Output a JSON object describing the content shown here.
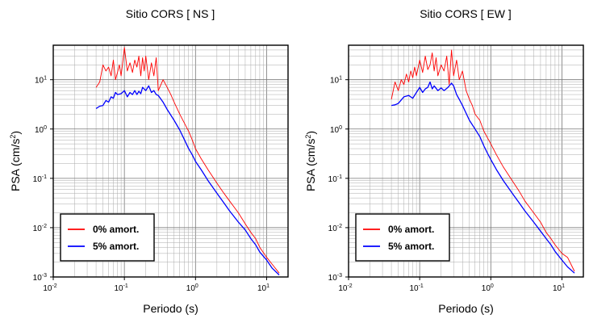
{
  "chart_data": [
    {
      "type": "line",
      "title": "Sitio CORS [ NS ]",
      "xlabel": "Periodo (s)",
      "ylabel_base": "PSA (cm/s",
      "ylabel_sup": "2",
      "ylabel_end": ")",
      "x_scale": "log",
      "y_scale": "log",
      "xlim": [
        0.01,
        20
      ],
      "ylim": [
        0.001,
        50
      ],
      "grid": true,
      "legend_position": "bottom-left",
      "x_ticks": [
        {
          "base": "10",
          "exp": "-2",
          "value": 0.01
        },
        {
          "base": "10",
          "exp": "-1",
          "value": 0.1
        },
        {
          "base": "10",
          "exp": "0",
          "value": 1
        },
        {
          "base": "10",
          "exp": "1",
          "value": 10
        }
      ],
      "y_ticks": [
        {
          "base": "10",
          "exp": "1",
          "value": 10
        },
        {
          "base": "10",
          "exp": "0",
          "value": 1
        },
        {
          "base": "10",
          "exp": "-1",
          "value": 0.1
        },
        {
          "base": "10",
          "exp": "-2",
          "value": 0.01
        },
        {
          "base": "10",
          "exp": "-3",
          "value": 0.001
        }
      ],
      "series": [
        {
          "name": "0% amort.",
          "color": "#ff0000",
          "x": [
            0.04,
            0.045,
            0.05,
            0.055,
            0.06,
            0.065,
            0.07,
            0.075,
            0.08,
            0.085,
            0.09,
            0.1,
            0.11,
            0.12,
            0.13,
            0.14,
            0.15,
            0.16,
            0.17,
            0.18,
            0.19,
            0.2,
            0.22,
            0.24,
            0.26,
            0.28,
            0.3,
            0.35,
            0.4,
            0.45,
            0.5,
            0.6,
            0.7,
            0.8,
            0.9,
            1.0,
            1.2,
            1.5,
            2,
            2.5,
            3,
            4,
            5,
            6,
            7,
            8,
            10,
            12,
            15
          ],
          "y": [
            7,
            9,
            20,
            15,
            18,
            12,
            25,
            10,
            14,
            20,
            12,
            45,
            15,
            22,
            14,
            25,
            18,
            30,
            12,
            28,
            15,
            30,
            10,
            22,
            12,
            28,
            6,
            10,
            7,
            5,
            3.5,
            2,
            1.3,
            0.9,
            0.6,
            0.4,
            0.25,
            0.15,
            0.08,
            0.05,
            0.035,
            0.02,
            0.012,
            0.008,
            0.006,
            0.004,
            0.0025,
            0.0018,
            0.0012
          ]
        },
        {
          "name": "5% amort.",
          "color": "#0000ff",
          "x": [
            0.04,
            0.045,
            0.05,
            0.055,
            0.06,
            0.065,
            0.07,
            0.075,
            0.08,
            0.09,
            0.1,
            0.11,
            0.12,
            0.13,
            0.14,
            0.15,
            0.16,
            0.17,
            0.18,
            0.2,
            0.22,
            0.24,
            0.26,
            0.28,
            0.3,
            0.35,
            0.4,
            0.5,
            0.6,
            0.7,
            0.8,
            0.9,
            1.0,
            1.2,
            1.5,
            2,
            2.5,
            3,
            4,
            5,
            6,
            7,
            8,
            10,
            12,
            15
          ],
          "y": [
            2.6,
            2.9,
            3,
            3.8,
            3.5,
            4.5,
            4.2,
            5.5,
            5,
            5.2,
            6,
            4.5,
            5.5,
            5,
            6,
            5,
            5.8,
            5.2,
            7,
            6,
            7.5,
            5.5,
            6,
            5,
            4.8,
            3.5,
            2.5,
            1.5,
            0.95,
            0.6,
            0.4,
            0.3,
            0.22,
            0.15,
            0.09,
            0.05,
            0.032,
            0.022,
            0.013,
            0.009,
            0.006,
            0.0045,
            0.0032,
            0.0022,
            0.0015,
            0.0011
          ]
        }
      ]
    },
    {
      "type": "line",
      "title": "Sitio CORS [ EW ]",
      "xlabel": "Periodo (s)",
      "ylabel_base": "PSA (cm/s",
      "ylabel_sup": "2",
      "ylabel_end": ")",
      "x_scale": "log",
      "y_scale": "log",
      "xlim": [
        0.01,
        20
      ],
      "ylim": [
        0.001,
        50
      ],
      "grid": true,
      "legend_position": "bottom-left",
      "x_ticks": [
        {
          "base": "10",
          "exp": "-2",
          "value": 0.01
        },
        {
          "base": "10",
          "exp": "-1",
          "value": 0.1
        },
        {
          "base": "10",
          "exp": "0",
          "value": 1
        },
        {
          "base": "10",
          "exp": "1",
          "value": 10
        }
      ],
      "y_ticks": [
        {
          "base": "10",
          "exp": "1",
          "value": 10
        },
        {
          "base": "10",
          "exp": "0",
          "value": 1
        },
        {
          "base": "10",
          "exp": "-1",
          "value": 0.1
        },
        {
          "base": "10",
          "exp": "-2",
          "value": 0.01
        },
        {
          "base": "10",
          "exp": "-3",
          "value": 0.001
        }
      ],
      "series": [
        {
          "name": "0% amort.",
          "color": "#ff0000",
          "x": [
            0.04,
            0.045,
            0.05,
            0.055,
            0.06,
            0.065,
            0.07,
            0.075,
            0.08,
            0.085,
            0.09,
            0.1,
            0.11,
            0.12,
            0.13,
            0.14,
            0.15,
            0.16,
            0.17,
            0.18,
            0.2,
            0.22,
            0.24,
            0.26,
            0.28,
            0.3,
            0.33,
            0.36,
            0.4,
            0.45,
            0.5,
            0.55,
            0.6,
            0.7,
            0.8,
            1.0,
            1.2,
            1.5,
            2,
            2.5,
            3,
            4,
            5,
            6,
            7,
            8,
            10,
            12,
            15
          ],
          "y": [
            4,
            9,
            6,
            10,
            8,
            13,
            9,
            15,
            11,
            18,
            12,
            25,
            14,
            30,
            16,
            20,
            35,
            15,
            28,
            12,
            20,
            15,
            30,
            8,
            40,
            12,
            25,
            10,
            15,
            6,
            4,
            3,
            2,
            1.5,
            0.9,
            0.5,
            0.3,
            0.17,
            0.09,
            0.055,
            0.035,
            0.02,
            0.013,
            0.008,
            0.006,
            0.0045,
            0.003,
            0.0025,
            0.0013
          ]
        },
        {
          "name": "5% amort.",
          "color": "#0000ff",
          "x": [
            0.04,
            0.045,
            0.05,
            0.06,
            0.07,
            0.08,
            0.09,
            0.1,
            0.11,
            0.12,
            0.13,
            0.14,
            0.15,
            0.16,
            0.18,
            0.2,
            0.22,
            0.25,
            0.28,
            0.3,
            0.33,
            0.36,
            0.4,
            0.5,
            0.6,
            0.7,
            0.8,
            0.9,
            1.0,
            1.2,
            1.5,
            2,
            2.5,
            3,
            4,
            5,
            6,
            7,
            8,
            10,
            12,
            15
          ],
          "y": [
            3,
            3.1,
            3.3,
            4.5,
            4.8,
            4.2,
            5.5,
            7,
            5.5,
            6.5,
            7,
            9,
            6.5,
            7.5,
            6,
            6.8,
            6,
            7,
            8.5,
            7.5,
            5,
            4,
            3,
            1.5,
            1,
            0.7,
            0.45,
            0.32,
            0.24,
            0.15,
            0.09,
            0.05,
            0.032,
            0.022,
            0.013,
            0.0085,
            0.006,
            0.0045,
            0.0033,
            0.0022,
            0.0016,
            0.0012
          ]
        }
      ]
    }
  ]
}
